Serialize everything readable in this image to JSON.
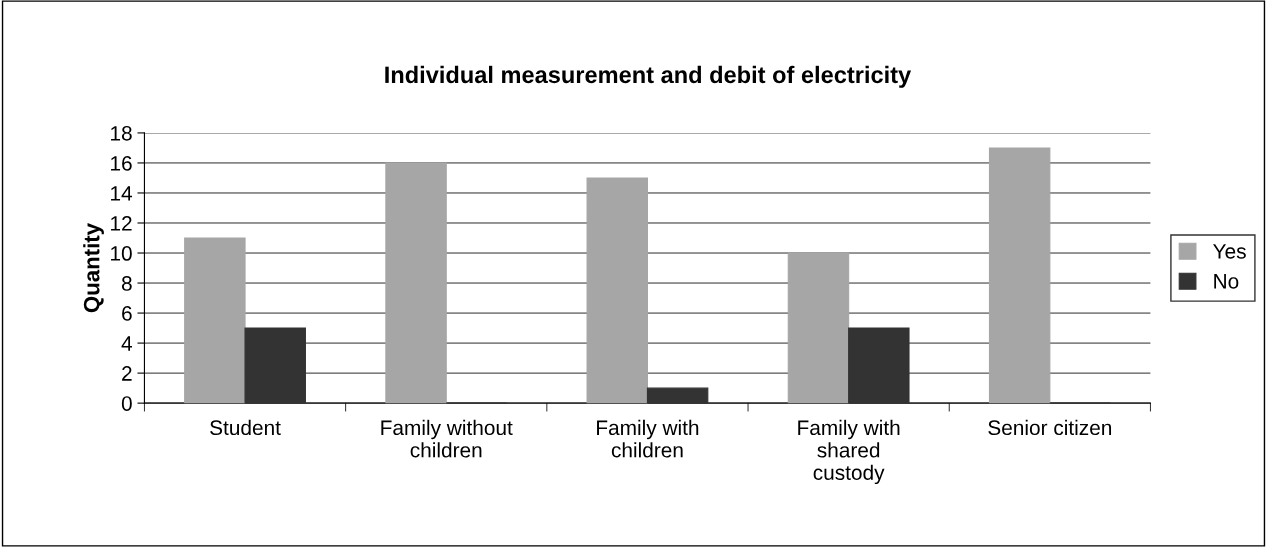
{
  "chart_data": {
    "type": "bar",
    "title": "Individual measurement and debit of electricity",
    "ylabel": "Quantity",
    "categories": [
      "Student",
      "Family without\nchildren",
      "Family with\nchildren",
      "Family with\nshared\ncustody",
      "Senior citizen"
    ],
    "series": [
      {
        "name": "Yes",
        "color": "#a6a6a6",
        "values": [
          11,
          16,
          15,
          10,
          17
        ]
      },
      {
        "name": "No",
        "color": "#333333",
        "values": [
          5,
          0,
          1,
          5,
          0
        ]
      }
    ],
    "ylim": [
      0,
      18
    ],
    "yticks": [
      0,
      2,
      4,
      6,
      8,
      10,
      12,
      14,
      16,
      18
    ],
    "grid": "y",
    "legend": "right"
  }
}
